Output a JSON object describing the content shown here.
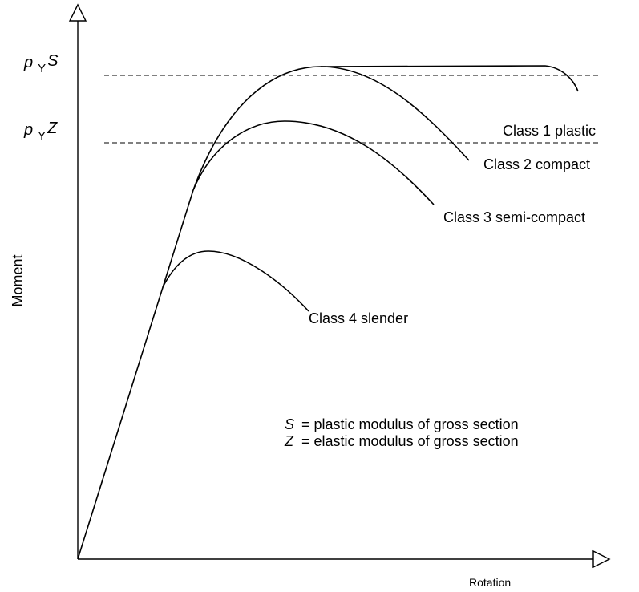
{
  "axes": {
    "y_label": "Moment",
    "x_label": "Rotation"
  },
  "levels": [
    {
      "symbol": "p",
      "subscript": "Y",
      "modulus": "S"
    },
    {
      "symbol": "p",
      "subscript": "Y",
      "modulus": "Z"
    }
  ],
  "curves": [
    {
      "label": "Class 1 plastic"
    },
    {
      "label": "Class 2 compact"
    },
    {
      "label": "Class 3 semi-compact"
    },
    {
      "label": "Class 4 slender"
    }
  ],
  "notes": [
    {
      "symbol": "S",
      "text": "= plastic modulus of gross section"
    },
    {
      "symbol": "Z",
      "text": "= elastic modulus of gross section"
    }
  ]
}
